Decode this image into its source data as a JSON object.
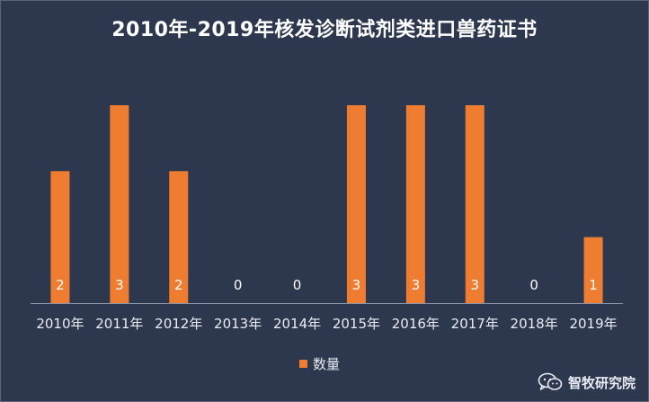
{
  "chart_data": {
    "type": "bar",
    "title": "2010年-2019年核发诊断试剂类进口兽药证书",
    "categories": [
      "2010年",
      "2011年",
      "2012年",
      "2013年",
      "2014年",
      "2015年",
      "2016年",
      "2017年",
      "2018年",
      "2019年"
    ],
    "series": [
      {
        "name": "数量",
        "values": [
          2,
          3,
          2,
          0,
          0,
          3,
          3,
          3,
          0,
          1
        ],
        "color": "#ee7d31"
      }
    ],
    "ylim": [
      0,
      3
    ],
    "xlabel": "",
    "ylabel": "",
    "grid": false,
    "legend_position": "bottom",
    "data_labels": true,
    "background": "#2d384f",
    "axis_color": "#8a93a6",
    "label_color": "#ffffff"
  },
  "watermark": {
    "icon": "wechat-icon",
    "text": "智牧研究院"
  }
}
